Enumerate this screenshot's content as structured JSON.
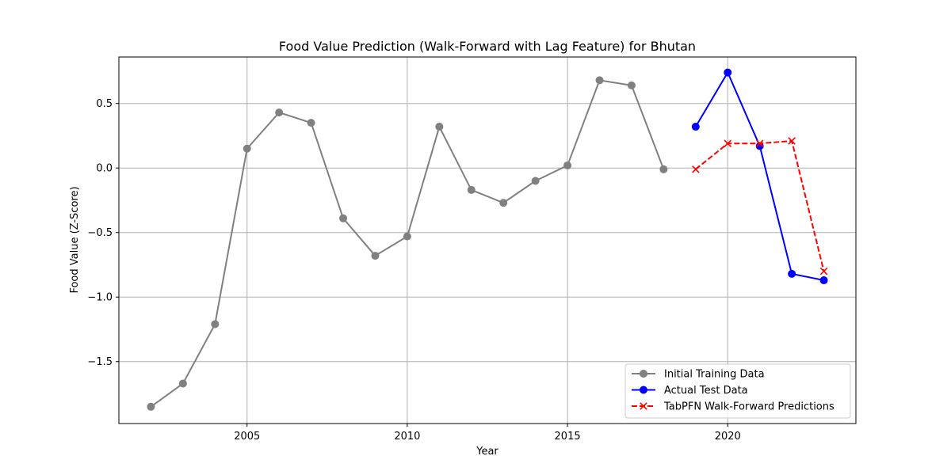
{
  "chart_data": {
    "type": "line",
    "title": "Food Value Prediction (Walk-Forward with Lag Feature) for Bhutan",
    "xlabel": "Year",
    "ylabel": "Food Value (Z-Score)",
    "xlim": [
      2001,
      2024
    ],
    "ylim": [
      -1.98,
      0.86
    ],
    "xticks": [
      2005,
      2010,
      2015,
      2020
    ],
    "xtick_labels": [
      "2005",
      "2010",
      "2015",
      "2020"
    ],
    "yticks": [
      0.5,
      0.0,
      -0.5,
      -1.0,
      -1.5
    ],
    "ytick_labels": [
      "0.5",
      "0.0",
      "−0.5",
      "−1.0",
      "−1.5"
    ],
    "grid": true,
    "legend_position": "bottom-right",
    "series": [
      {
        "name": "Initial Training Data",
        "color": "#808080",
        "line_style": "solid",
        "marker": "circle",
        "x": [
          2002,
          2003,
          2004,
          2005,
          2006,
          2007,
          2008,
          2009,
          2010,
          2011,
          2012,
          2013,
          2014,
          2015,
          2016,
          2017,
          2018
        ],
        "y": [
          -1.85,
          -1.67,
          -1.21,
          0.15,
          0.43,
          0.35,
          -0.39,
          -0.68,
          -0.53,
          0.32,
          -0.17,
          -0.27,
          -0.1,
          0.02,
          0.68,
          0.64,
          -0.01
        ]
      },
      {
        "name": "Actual Test Data",
        "color": "#0000ff",
        "line_style": "solid",
        "marker": "circle",
        "x": [
          2019,
          2020,
          2021,
          2022,
          2023
        ],
        "y": [
          0.32,
          0.74,
          0.17,
          -0.82,
          -0.87
        ]
      },
      {
        "name": "TabPFN Walk-Forward Predictions",
        "color": "#ff0000",
        "line_style": "dashed",
        "marker": "x",
        "x": [
          2019,
          2020,
          2021,
          2022,
          2023
        ],
        "y": [
          -0.01,
          0.19,
          0.19,
          0.21,
          -0.8
        ]
      }
    ]
  }
}
